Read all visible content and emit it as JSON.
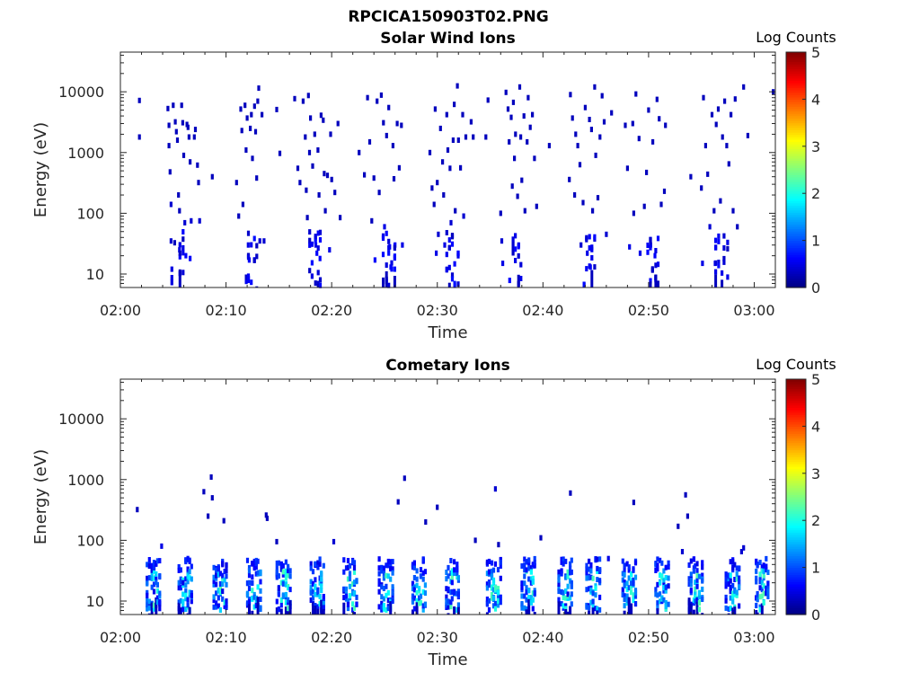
{
  "figure": {
    "title": "RPCICA150903T02.PNG"
  },
  "chart_data": [
    {
      "type": "heatmap",
      "title": "Solar Wind Ions",
      "xlabel": "Time",
      "ylabel": "Energy (eV)",
      "x_ticks": [
        "02:00",
        "02:10",
        "02:20",
        "02:30",
        "02:40",
        "02:50",
        "03:00"
      ],
      "x_tick_minutes": [
        0,
        10,
        20,
        30,
        40,
        50,
        60
      ],
      "x_range_minutes": [
        0,
        62
      ],
      "y_scale": "log",
      "y_range": [
        6,
        45000
      ],
      "y_ticks": [
        "10",
        "100",
        "1000",
        "10000"
      ],
      "y_tick_values": [
        10,
        100,
        1000,
        10000
      ],
      "colorbar": {
        "label": "Log Counts",
        "range": [
          0,
          5
        ],
        "ticks": [
          "0",
          "1",
          "2",
          "3",
          "4",
          "5"
        ],
        "colormap": "jet"
      },
      "bursts_minutes": [
        5.5,
        12.5,
        18.5,
        25.5,
        31.5,
        37.5,
        44.5,
        50.5,
        57.0
      ],
      "points": [
        [
          1.8,
          7200,
          0.3
        ],
        [
          1.8,
          1800,
          0.3
        ],
        [
          4.5,
          5300,
          0.3
        ],
        [
          4.6,
          2800,
          0.3
        ],
        [
          4.6,
          1300,
          0.3
        ],
        [
          4.7,
          480,
          0.3
        ],
        [
          4.8,
          140,
          0.4
        ],
        [
          4.8,
          35,
          0.4
        ],
        [
          5.0,
          6000,
          0.3
        ],
        [
          5.2,
          3200,
          0.3
        ],
        [
          5.3,
          2200,
          0.3
        ],
        [
          5.4,
          1600,
          0.3
        ],
        [
          5.5,
          200,
          0.3
        ],
        [
          5.6,
          110,
          0.3
        ],
        [
          5.6,
          25,
          0.5
        ],
        [
          5.8,
          6000,
          0.3
        ],
        [
          5.9,
          3100,
          0.3
        ],
        [
          6.0,
          900,
          0.3
        ],
        [
          6.1,
          70,
          0.4
        ],
        [
          6.2,
          20,
          0.6
        ],
        [
          6.3,
          2900,
          0.3
        ],
        [
          6.4,
          2600,
          0.3
        ],
        [
          6.5,
          1800,
          0.3
        ],
        [
          6.6,
          700,
          0.3
        ],
        [
          6.6,
          18,
          0.6
        ],
        [
          6.7,
          75,
          0.4
        ],
        [
          7.0,
          1800,
          0.3
        ],
        [
          7.1,
          2400,
          0.3
        ],
        [
          7.3,
          620,
          0.3
        ],
        [
          7.4,
          320,
          0.3
        ],
        [
          7.5,
          75,
          0.4
        ],
        [
          8.7,
          400,
          0.3
        ],
        [
          11.0,
          320,
          0.3
        ],
        [
          11.2,
          90,
          0.3
        ],
        [
          11.4,
          5200,
          0.3
        ],
        [
          11.5,
          2300,
          0.3
        ],
        [
          11.6,
          140,
          0.3
        ],
        [
          11.8,
          6000,
          0.3
        ],
        [
          11.9,
          1100,
          0.3
        ],
        [
          12.0,
          3700,
          0.3
        ],
        [
          12.1,
          30,
          0.5
        ],
        [
          12.2,
          17,
          0.6
        ],
        [
          12.3,
          2500,
          0.3
        ],
        [
          12.4,
          4200,
          0.3
        ],
        [
          12.5,
          800,
          0.3
        ],
        [
          12.7,
          5800,
          0.3
        ],
        [
          12.8,
          2200,
          0.3
        ],
        [
          12.9,
          380,
          0.3
        ],
        [
          13.0,
          7000,
          0.3
        ],
        [
          13.1,
          11500,
          0.3
        ],
        [
          13.2,
          35,
          0.4
        ],
        [
          13.4,
          4200,
          0.3
        ],
        [
          13.6,
          35,
          0.4
        ],
        [
          14.8,
          5100,
          0.3
        ],
        [
          15.1,
          970,
          0.3
        ],
        [
          16.5,
          7700,
          0.3
        ],
        [
          16.8,
          550,
          0.3
        ],
        [
          17.0,
          320,
          0.3
        ],
        [
          17.3,
          7000,
          0.3
        ],
        [
          17.5,
          1800,
          0.3
        ],
        [
          17.6,
          240,
          0.3
        ],
        [
          17.7,
          85,
          0.3
        ],
        [
          17.8,
          8700,
          0.3
        ],
        [
          17.9,
          1000,
          0.3
        ],
        [
          18.0,
          3700,
          0.3
        ],
        [
          18.2,
          600,
          0.3
        ],
        [
          18.4,
          2000,
          0.3
        ],
        [
          18.5,
          30,
          0.5
        ],
        [
          18.6,
          22,
          0.6
        ],
        [
          18.7,
          1100,
          0.3
        ],
        [
          18.8,
          200,
          0.3
        ],
        [
          18.9,
          18,
          0.6
        ],
        [
          19.0,
          4100,
          0.3
        ],
        [
          19.2,
          3400,
          0.3
        ],
        [
          19.3,
          450,
          0.3
        ],
        [
          19.4,
          110,
          0.3
        ],
        [
          19.6,
          420,
          0.3
        ],
        [
          19.8,
          25,
          0.5
        ],
        [
          19.9,
          2000,
          0.3
        ],
        [
          20.0,
          360,
          0.3
        ],
        [
          20.3,
          220,
          0.3
        ],
        [
          20.6,
          3000,
          0.3
        ],
        [
          20.8,
          85,
          0.3
        ],
        [
          22.6,
          1000,
          0.3
        ],
        [
          23.1,
          430,
          0.3
        ],
        [
          23.4,
          8000,
          0.3
        ],
        [
          23.6,
          1500,
          0.3
        ],
        [
          23.8,
          75,
          0.3
        ],
        [
          24.0,
          380,
          0.3
        ],
        [
          24.1,
          17,
          0.6
        ],
        [
          24.3,
          7000,
          0.3
        ],
        [
          24.5,
          220,
          0.3
        ],
        [
          24.7,
          8800,
          0.3
        ],
        [
          24.9,
          3100,
          0.3
        ],
        [
          25.0,
          60,
          0.5
        ],
        [
          25.2,
          1900,
          0.3
        ],
        [
          25.4,
          5500,
          0.3
        ],
        [
          25.5,
          28,
          0.6
        ],
        [
          25.6,
          13,
          0.6
        ],
        [
          25.8,
          1300,
          0.3
        ],
        [
          25.9,
          370,
          0.3
        ],
        [
          26.0,
          30,
          0.6
        ],
        [
          26.2,
          3000,
          0.3
        ],
        [
          26.4,
          560,
          0.3
        ],
        [
          26.6,
          2800,
          0.3
        ],
        [
          26.7,
          30,
          0.5
        ],
        [
          29.3,
          1000,
          0.3
        ],
        [
          29.5,
          260,
          0.3
        ],
        [
          29.7,
          140,
          0.3
        ],
        [
          29.8,
          5200,
          0.3
        ],
        [
          29.9,
          22,
          0.5
        ],
        [
          30.0,
          320,
          0.3
        ],
        [
          30.1,
          45,
          0.4
        ],
        [
          30.3,
          2500,
          0.3
        ],
        [
          30.5,
          700,
          0.3
        ],
        [
          30.6,
          200,
          0.3
        ],
        [
          30.7,
          30,
          0.5
        ],
        [
          30.9,
          4200,
          0.3
        ],
        [
          31.0,
          1100,
          0.3
        ],
        [
          31.2,
          550,
          0.3
        ],
        [
          31.3,
          70,
          0.4
        ],
        [
          31.5,
          1600,
          0.3
        ],
        [
          31.6,
          6200,
          0.3
        ],
        [
          31.7,
          110,
          0.3
        ],
        [
          31.9,
          12500,
          0.3
        ],
        [
          32.0,
          1600,
          0.3
        ],
        [
          32.2,
          560,
          0.3
        ],
        [
          32.4,
          4200,
          0.3
        ],
        [
          32.5,
          90,
          0.4
        ],
        [
          32.7,
          1800,
          0.3
        ],
        [
          33.2,
          3200,
          0.3
        ],
        [
          33.4,
          1800,
          0.3
        ],
        [
          34.6,
          1800,
          0.3
        ],
        [
          34.8,
          7300,
          0.3
        ],
        [
          36.0,
          100,
          0.3
        ],
        [
          36.1,
          35,
          0.4
        ],
        [
          36.2,
          15,
          0.5
        ],
        [
          36.5,
          9800,
          0.3
        ],
        [
          36.7,
          5200,
          0.3
        ],
        [
          36.8,
          1500,
          0.3
        ],
        [
          37.0,
          3800,
          0.3
        ],
        [
          37.1,
          280,
          0.3
        ],
        [
          37.2,
          6700,
          0.3
        ],
        [
          37.3,
          800,
          0.3
        ],
        [
          37.4,
          2000,
          0.3
        ],
        [
          37.6,
          190,
          0.3
        ],
        [
          37.7,
          30,
          0.5
        ],
        [
          37.8,
          12000,
          0.3
        ],
        [
          37.9,
          1800,
          0.3
        ],
        [
          38.0,
          350,
          0.3
        ],
        [
          38.2,
          4000,
          0.3
        ],
        [
          38.3,
          110,
          0.3
        ],
        [
          38.5,
          1500,
          0.3
        ],
        [
          38.6,
          8000,
          0.3
        ],
        [
          38.8,
          2600,
          0.3
        ],
        [
          39.0,
          4200,
          0.3
        ],
        [
          39.2,
          800,
          0.3
        ],
        [
          39.4,
          130,
          0.3
        ],
        [
          40.6,
          1300,
          0.3
        ],
        [
          42.5,
          360,
          0.3
        ],
        [
          42.6,
          9000,
          0.3
        ],
        [
          42.8,
          3700,
          0.3
        ],
        [
          43.0,
          200,
          0.3
        ],
        [
          43.1,
          2000,
          0.3
        ],
        [
          43.3,
          1300,
          0.3
        ],
        [
          43.5,
          630,
          0.3
        ],
        [
          43.6,
          30,
          0.4
        ],
        [
          43.8,
          150,
          0.3
        ],
        [
          44.0,
          5500,
          0.3
        ],
        [
          44.2,
          22,
          0.5
        ],
        [
          44.4,
          3500,
          0.3
        ],
        [
          44.5,
          13,
          0.6
        ],
        [
          44.6,
          2400,
          0.3
        ],
        [
          44.7,
          110,
          0.3
        ],
        [
          44.9,
          12000,
          0.3
        ],
        [
          45.0,
          900,
          0.3
        ],
        [
          45.2,
          180,
          0.3
        ],
        [
          45.4,
          1800,
          0.3
        ],
        [
          45.6,
          8600,
          0.3
        ],
        [
          45.8,
          3200,
          0.3
        ],
        [
          46.0,
          45,
          0.4
        ],
        [
          46.5,
          4500,
          0.3
        ],
        [
          47.8,
          2800,
          0.3
        ],
        [
          48.0,
          550,
          0.3
        ],
        [
          48.2,
          28,
          0.5
        ],
        [
          48.5,
          3000,
          0.3
        ],
        [
          48.6,
          100,
          0.3
        ],
        [
          48.8,
          9200,
          0.3
        ],
        [
          49.1,
          1700,
          0.3
        ],
        [
          49.2,
          22,
          0.5
        ],
        [
          49.6,
          130,
          0.3
        ],
        [
          49.8,
          470,
          0.3
        ],
        [
          50.0,
          5000,
          0.3
        ],
        [
          50.2,
          30,
          0.4
        ],
        [
          50.4,
          1500,
          0.3
        ],
        [
          50.6,
          20,
          0.6
        ],
        [
          50.8,
          7500,
          0.3
        ],
        [
          51.0,
          3600,
          0.3
        ],
        [
          51.2,
          140,
          0.3
        ],
        [
          51.5,
          230,
          0.3
        ],
        [
          51.6,
          2800,
          0.3
        ],
        [
          54.0,
          400,
          0.3
        ],
        [
          55.0,
          260,
          0.3
        ],
        [
          55.1,
          15,
          0.5
        ],
        [
          55.2,
          8000,
          0.3
        ],
        [
          55.4,
          1300,
          0.3
        ],
        [
          55.6,
          440,
          0.3
        ],
        [
          55.8,
          60,
          0.4
        ],
        [
          56.0,
          4200,
          0.3
        ],
        [
          56.2,
          110,
          0.3
        ],
        [
          56.3,
          15,
          0.5
        ],
        [
          56.4,
          2900,
          0.3
        ],
        [
          56.6,
          5200,
          0.3
        ],
        [
          56.8,
          160,
          0.3
        ],
        [
          57.0,
          1800,
          0.3
        ],
        [
          57.2,
          7000,
          0.3
        ],
        [
          57.4,
          1300,
          0.3
        ],
        [
          57.6,
          650,
          0.3
        ],
        [
          57.8,
          4200,
          0.3
        ],
        [
          58.0,
          110,
          0.3
        ],
        [
          58.2,
          7600,
          0.3
        ],
        [
          58.4,
          60,
          0.3
        ],
        [
          59.0,
          12000,
          0.3
        ],
        [
          59.4,
          1900,
          0.3
        ],
        [
          61.8,
          10000,
          0.3
        ]
      ]
    },
    {
      "type": "heatmap",
      "title": "Cometary Ions",
      "xlabel": "Time",
      "ylabel": "Energy (eV)",
      "x_ticks": [
        "02:00",
        "02:10",
        "02:20",
        "02:30",
        "02:40",
        "02:50",
        "03:00"
      ],
      "x_tick_minutes": [
        0,
        10,
        20,
        30,
        40,
        50,
        60
      ],
      "x_range_minutes": [
        0,
        62
      ],
      "y_scale": "log",
      "y_range": [
        6,
        45000
      ],
      "y_ticks": [
        "10",
        "100",
        "1000",
        "10000"
      ],
      "y_tick_values": [
        10,
        100,
        1000,
        10000
      ],
      "colorbar": {
        "label": "Log Counts",
        "range": [
          0,
          5
        ],
        "ticks": [
          "0",
          "1",
          "2",
          "3",
          "4",
          "5"
        ],
        "colormap": "jet"
      },
      "bursts_minutes": [
        3.2,
        6.2,
        9.5,
        12.7,
        15.5,
        18.7,
        21.8,
        25.2,
        28.3,
        31.5,
        35.4,
        38.7,
        42.2,
        44.8,
        48.2,
        51.3,
        54.5,
        58.0,
        60.8
      ],
      "points": [
        [
          1.6,
          320,
          0.3
        ],
        [
          3.9,
          80,
          0.5
        ],
        [
          7.9,
          630,
          0.3
        ],
        [
          8.3,
          250,
          0.3
        ],
        [
          8.6,
          1100,
          0.3
        ],
        [
          8.7,
          500,
          0.3
        ],
        [
          9.8,
          210,
          0.3
        ],
        [
          13.8,
          260,
          0.3
        ],
        [
          13.9,
          230,
          0.3
        ],
        [
          14.8,
          95,
          0.3
        ],
        [
          20.2,
          95,
          0.4
        ],
        [
          26.3,
          430,
          0.3
        ],
        [
          26.9,
          1050,
          0.3
        ],
        [
          28.9,
          200,
          0.3
        ],
        [
          30.0,
          350,
          0.3
        ],
        [
          33.6,
          100,
          0.3
        ],
        [
          35.5,
          700,
          0.4
        ],
        [
          35.8,
          85,
          0.3
        ],
        [
          39.8,
          110,
          0.3
        ],
        [
          42.6,
          600,
          0.3
        ],
        [
          46.2,
          50,
          0.5
        ],
        [
          48.6,
          420,
          0.3
        ],
        [
          52.8,
          170,
          0.3
        ],
        [
          53.2,
          65,
          0.4
        ],
        [
          53.5,
          560,
          0.3
        ],
        [
          53.7,
          250,
          0.3
        ],
        [
          58.8,
          65,
          0.4
        ],
        [
          59.0,
          75,
          0.4
        ]
      ]
    }
  ]
}
